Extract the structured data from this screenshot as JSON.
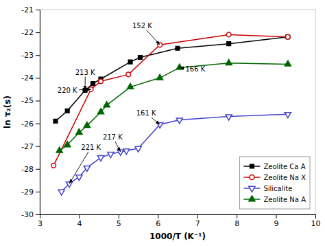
{
  "chart_data": {
    "type": "line",
    "x_label": "1000/T (K⁻¹)",
    "y_label": "ln τ₂(s)",
    "xlim": [
      3,
      10
    ],
    "ylim": [
      -30,
      -21
    ],
    "xticks": [
      3,
      4,
      5,
      6,
      7,
      8,
      9,
      10
    ],
    "yticks": [
      -30,
      -29,
      -28,
      -27,
      -26,
      -25,
      -24,
      -23,
      -22,
      -21
    ],
    "legend": "lower right",
    "series": [
      {
        "name": "Zeolite Ca A",
        "color": "#000000",
        "marker": "square",
        "x": [
          3.4,
          3.7,
          4.15,
          4.35,
          4.55,
          5.3,
          5.55,
          6.5,
          7.8,
          9.3
        ],
        "values": [
          -25.9,
          -25.45,
          -24.55,
          -24.25,
          -24.05,
          -23.3,
          -23.1,
          -22.7,
          -22.5,
          -22.2
        ]
      },
      {
        "name": "Zeolite Na X",
        "color": "#cc0000",
        "marker": "circle-open",
        "x": [
          3.35,
          4.3,
          4.55,
          5.25,
          6.05,
          7.8,
          9.3
        ],
        "values": [
          -27.85,
          -24.5,
          -24.15,
          -23.85,
          -22.55,
          -22.1,
          -22.2
        ]
      },
      {
        "name": "Silicalite",
        "color": "#4444cc",
        "marker": "triangle-down-open",
        "x": [
          3.55,
          3.75,
          4.0,
          4.2,
          4.55,
          4.8,
          5.05,
          5.2,
          5.5,
          6.05,
          6.55,
          7.8,
          9.3
        ],
        "values": [
          -29.0,
          -28.65,
          -28.35,
          -27.95,
          -27.5,
          -27.35,
          -27.25,
          -27.2,
          -27.1,
          -26.05,
          -25.85,
          -25.7,
          -25.6
        ]
      },
      {
        "name": "Zeolite Na A",
        "color": "#006600",
        "marker": "triangle-up",
        "x": [
          3.5,
          3.7,
          4.0,
          4.2,
          4.55,
          4.7,
          5.3,
          6.05,
          6.55,
          7.8,
          9.3
        ],
        "values": [
          -27.2,
          -26.95,
          -26.4,
          -26.1,
          -25.5,
          -25.2,
          -24.4,
          -24.0,
          -23.55,
          -23.35,
          -23.4
        ]
      }
    ],
    "annotations": [
      {
        "text": "213 K",
        "xy": [
          4.15,
          -24.55
        ],
        "xytext": [
          3.9,
          -23.75
        ]
      },
      {
        "text": "220 K",
        "xy": [
          4.3,
          -24.5
        ],
        "xytext": [
          3.45,
          -24.55
        ]
      },
      {
        "text": "152 K",
        "xy": [
          6.05,
          -22.55
        ],
        "xytext": [
          5.35,
          -21.7
        ]
      },
      {
        "text": "166 K",
        "xy": [
          6.55,
          -23.55
        ],
        "xytext": [
          6.7,
          -23.6
        ]
      },
      {
        "text": "221 K",
        "xy": [
          3.75,
          -28.65
        ],
        "xytext": [
          4.05,
          -27.05
        ]
      },
      {
        "text": "217 K",
        "xy": [
          5.05,
          -27.25
        ],
        "xytext": [
          4.6,
          -26.6
        ]
      },
      {
        "text": "161 K",
        "xy": [
          6.05,
          -26.05
        ],
        "xytext": [
          5.45,
          -25.55
        ]
      }
    ]
  }
}
